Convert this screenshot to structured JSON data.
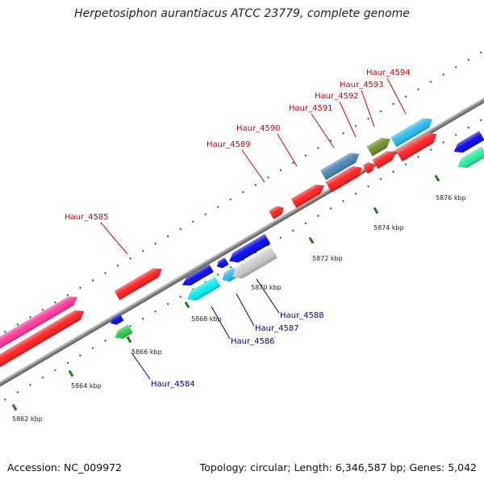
{
  "title": "Herpetosiphon aurantiacus ATCC 23779, complete genome",
  "accession": "Accession: NC_009972",
  "topology": "Topology: circular; Length: 6,346,587 bp; Genes: 5,042",
  "colors": {
    "backbone": "#8c8c8c",
    "tick": "#1f7a1f",
    "forward_label": "#cc0000",
    "reverse_label": "#00009c"
  },
  "ticks": [
    {
      "label": "5862 kbp"
    },
    {
      "label": "5864 kbp"
    },
    {
      "label": "5866 kbp"
    },
    {
      "label": "5868 kbp"
    },
    {
      "label": "5870 kbp"
    },
    {
      "label": "5872 kbp"
    },
    {
      "label": "5874 kbp"
    },
    {
      "label": "5876 kbp"
    }
  ],
  "genes": [
    {
      "label": "",
      "strand": "+",
      "color": "#ff3399"
    },
    {
      "label": "",
      "strand": "+",
      "color": "#ff1a1a"
    },
    {
      "label": "Haur_4584",
      "strand": "-",
      "color": "#0000ee"
    },
    {
      "label": "",
      "strand": "-",
      "color": "#22cc44"
    },
    {
      "label": "Haur_4585",
      "strand": "+",
      "color": "#ff1a1a"
    },
    {
      "label": "Haur_4586",
      "strand": "-",
      "color": "#0000ee"
    },
    {
      "label": "",
      "strand": "-",
      "color": "#00eeee"
    },
    {
      "label": "Haur_4587",
      "strand": "-",
      "color": "#0000ee"
    },
    {
      "label": "",
      "strand": "-",
      "color": "#22bbee"
    },
    {
      "label": "Haur_4588",
      "strand": "-",
      "color": "#0000ee"
    },
    {
      "label": "",
      "strand": "-",
      "color": "#c8c8c8"
    },
    {
      "label": "Haur_4589",
      "strand": "+",
      "color": "#ff1a1a"
    },
    {
      "label": "Haur_4590",
      "strand": "+",
      "color": "#ff1a1a"
    },
    {
      "label": "Haur_4591",
      "strand": "+",
      "color": "#4682b4"
    },
    {
      "label": "",
      "strand": "+",
      "color": "#ff1a1a"
    },
    {
      "label": "Haur_4592",
      "strand": "+",
      "color": "#ff1a1a"
    },
    {
      "label": "Haur_4593",
      "strand": "+",
      "color": "#6b8e23"
    },
    {
      "label": "",
      "strand": "+",
      "color": "#ff1a1a"
    },
    {
      "label": "Haur_4594",
      "strand": "+",
      "color": "#22bbee"
    },
    {
      "label": "",
      "strand": "+",
      "color": "#ff1a1a"
    },
    {
      "label": "",
      "strand": "-",
      "color": "#0000ee"
    },
    {
      "label": "",
      "strand": "-",
      "color": "#22ee99"
    }
  ]
}
